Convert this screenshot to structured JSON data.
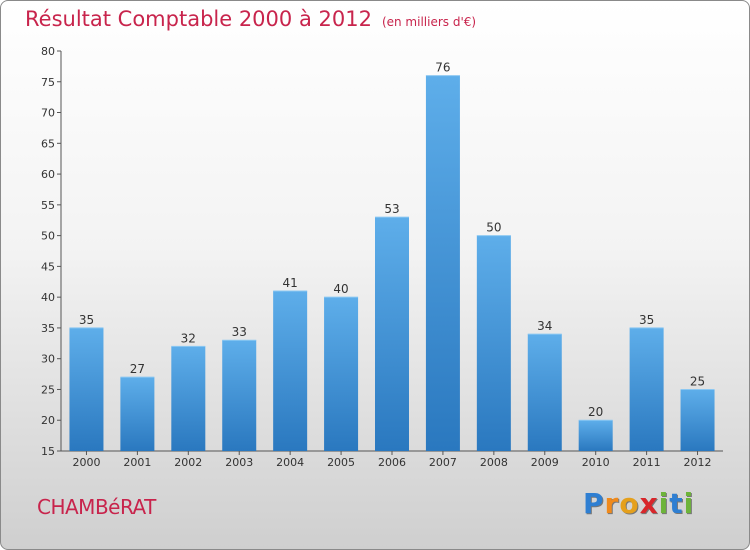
{
  "chart_data": {
    "type": "bar",
    "title": "Résultat Comptable 2000 à 2012",
    "subtitle": "(en milliers d'€)",
    "categories": [
      "2000",
      "2001",
      "2002",
      "2003",
      "2004",
      "2005",
      "2006",
      "2007",
      "2008",
      "2009",
      "2010",
      "2011",
      "2012"
    ],
    "values": [
      35,
      27,
      32,
      33,
      41,
      40,
      53,
      76,
      50,
      34,
      20,
      35,
      25
    ],
    "ylim": [
      15,
      80
    ],
    "yticks": [
      15,
      20,
      25,
      30,
      35,
      40,
      45,
      50,
      55,
      60,
      65,
      70,
      75,
      80
    ],
    "xlabel": "",
    "ylabel": "",
    "grid": false,
    "bar_color": "#3a8fd6"
  },
  "footer": {
    "commune": "CHAMBéRAT",
    "logo": [
      "P",
      "r",
      "o",
      "x",
      "i",
      "t",
      "i"
    ],
    "logo_colors": [
      "#2f7fd2",
      "#f08a1c",
      "#e5a01c",
      "#d8262a",
      "#6db43a",
      "#2f7fd2",
      "#6db43a"
    ]
  }
}
